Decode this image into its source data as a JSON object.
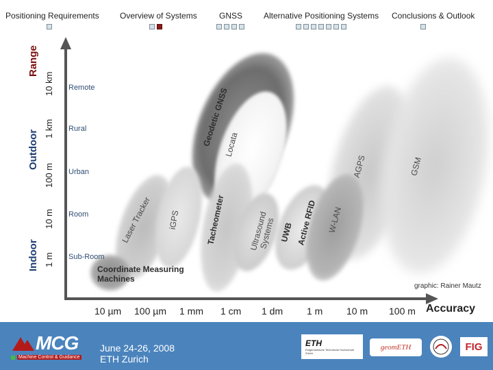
{
  "nav": {
    "sections": [
      {
        "label": "Positioning Requirements",
        "dots": 1,
        "active": -1
      },
      {
        "label": "Overview of Systems",
        "dots": 2,
        "active": 1
      },
      {
        "label": "GNSS",
        "dots": 4,
        "active": -1
      },
      {
        "label": "Alternative Positioning Systems",
        "dots": 7,
        "active": -1
      },
      {
        "label": "Conclusions & Outlook",
        "dots": 1,
        "active": -1
      }
    ]
  },
  "slide": {
    "y_axis": {
      "title": "Range",
      "groups": {
        "outdoor": "Outdoor",
        "indoor": "Indoor"
      },
      "ticks": [
        "10 km",
        "1 km",
        "100 m",
        "10 m",
        "1 m"
      ],
      "categories": [
        "Remote",
        "Rural",
        "Urban",
        "Room",
        "Sub-Room"
      ]
    },
    "x_axis": {
      "title": "Accuracy",
      "ticks": [
        "10 µm",
        "100 µm",
        "1 mm",
        "1 cm",
        "1 dm",
        "1 m",
        "10 m",
        "100 m"
      ]
    },
    "systems": [
      "Coordinate Measuring Machines",
      "Laser Tracker",
      "iGPS",
      "Tacheometer",
      "Ultrasound Systems",
      "Geodetic GNSS",
      "Locata",
      "UWB",
      "Active RFID",
      "W-LAN",
      "AGPS",
      "GSM"
    ],
    "credit": "graphic: Rainer Mautz"
  },
  "footer": {
    "event_date": "June 24-26, 2008",
    "event_place": "ETH Zurich",
    "logos": {
      "mcg_main": "MCG",
      "mcg_sub": "Machine Control & Guidance",
      "eth": "ETH",
      "eth_sub": "Eidgenössische Technische Hochschule Zürich",
      "geometh": "geomETH",
      "fig": "FIG"
    },
    "color": "#4b84bd"
  }
}
